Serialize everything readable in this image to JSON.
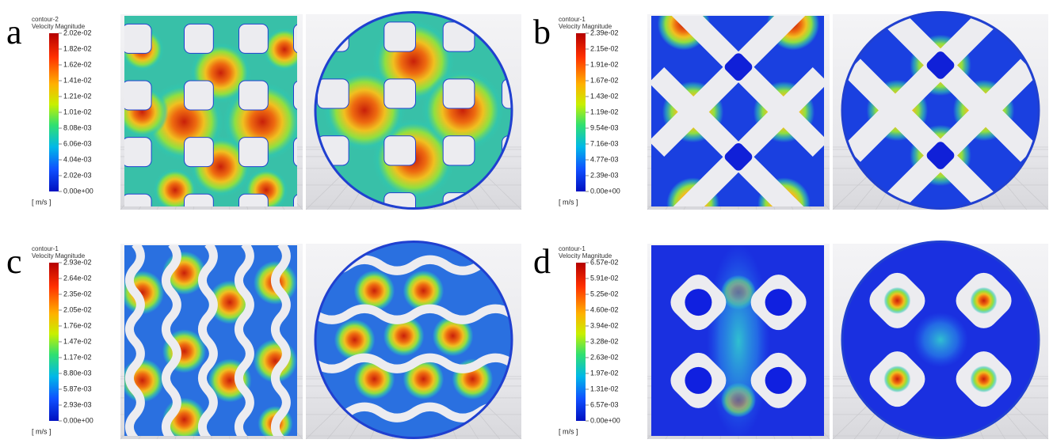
{
  "panels": [
    {
      "label": "a",
      "contour": "contour-2",
      "quantity": "Velocity Magnitude",
      "ticks": [
        "2.02e-02",
        "1.82e-02",
        "1.62e-02",
        "1.41e-02",
        "1.21e-02",
        "1.01e-02",
        "8.08e-03",
        "6.06e-03",
        "4.04e-03",
        "2.02e-03",
        "0.00e+00"
      ],
      "unit": "[ m/s ]"
    },
    {
      "label": "b",
      "contour": "contour-1",
      "quantity": "Velocity Magnitude",
      "ticks": [
        "2.39e-02",
        "2.15e-02",
        "1.91e-02",
        "1.67e-02",
        "1.43e-02",
        "1.19e-02",
        "9.54e-03",
        "7.16e-03",
        "4.77e-03",
        "2.39e-03",
        "0.00e+00"
      ],
      "unit": "[ m/s ]"
    },
    {
      "label": "c",
      "contour": "contour-1",
      "quantity": "Velocity Magnitude",
      "ticks": [
        "2.93e-02",
        "2.64e-02",
        "2.35e-02",
        "2.05e-02",
        "1.76e-02",
        "1.47e-02",
        "1.17e-02",
        "8.80e-03",
        "5.87e-03",
        "2.93e-03",
        "0.00e+00"
      ],
      "unit": "[ m/s ]"
    },
    {
      "label": "d",
      "contour": "contour-1",
      "quantity": "Velocity Magnitude",
      "ticks": [
        "6.57e-02",
        "5.91e-02",
        "5.25e-02",
        "4.60e-02",
        "3.94e-02",
        "3.28e-02",
        "2.63e-02",
        "1.97e-02",
        "1.31e-02",
        "6.57e-03",
        "0.00e+00"
      ],
      "unit": "[ m/s ]"
    }
  ]
}
